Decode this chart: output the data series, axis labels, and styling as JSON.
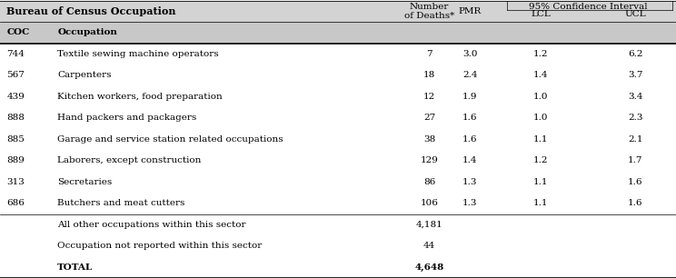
{
  "header1_left": "Bureau of Census Occupation",
  "header1_num": "Number\nof Deaths*",
  "header1_pmr": "PMR",
  "header1_ci": "95% Confidence Interval",
  "header1_lcl": "LCL",
  "header1_ucl": "UCL",
  "subheader_coc": "COC",
  "subheader_occ": "Occupation",
  "rows": [
    {
      "coc": "744",
      "occupation": "Textile sewing machine operators",
      "deaths": "7",
      "pmr": "3.0",
      "lcl": "1.2",
      "ucl": "6.2"
    },
    {
      "coc": "567",
      "occupation": "Carpenters",
      "deaths": "18",
      "pmr": "2.4",
      "lcl": "1.4",
      "ucl": "3.7"
    },
    {
      "coc": "439",
      "occupation": "Kitchen workers, food preparation",
      "deaths": "12",
      "pmr": "1.9",
      "lcl": "1.0",
      "ucl": "3.4"
    },
    {
      "coc": "888",
      "occupation": "Hand packers and packagers",
      "deaths": "27",
      "pmr": "1.6",
      "lcl": "1.0",
      "ucl": "2.3"
    },
    {
      "coc": "885",
      "occupation": "Garage and service station related occupations",
      "deaths": "38",
      "pmr": "1.6",
      "lcl": "1.1",
      "ucl": "2.1"
    },
    {
      "coc": "889",
      "occupation": "Laborers, except construction",
      "deaths": "129",
      "pmr": "1.4",
      "lcl": "1.2",
      "ucl": "1.7"
    },
    {
      "coc": "313",
      "occupation": "Secretaries",
      "deaths": "86",
      "pmr": "1.3",
      "lcl": "1.1",
      "ucl": "1.6"
    },
    {
      "coc": "686",
      "occupation": "Butchers and meat cutters",
      "deaths": "106",
      "pmr": "1.3",
      "lcl": "1.1",
      "ucl": "1.6"
    }
  ],
  "extra_rows": [
    {
      "coc": "",
      "occupation": "All other occupations within this sector",
      "deaths": "4,181",
      "pmr": "",
      "lcl": "",
      "ucl": ""
    },
    {
      "coc": "",
      "occupation": "Occupation not reported within this sector",
      "deaths": "44",
      "pmr": "",
      "lcl": "",
      "ucl": ""
    },
    {
      "coc": "",
      "occupation": "TOTAL",
      "deaths": "4,648",
      "pmr": "",
      "lcl": "",
      "ucl": ""
    }
  ],
  "col_x": {
    "coc": 0.01,
    "occupation": 0.085,
    "deaths": 0.635,
    "pmr": 0.695,
    "lcl": 0.8,
    "ucl": 0.94
  },
  "bg_header": "#d3d3d3",
  "bg_subheader": "#c8c8c8",
  "bg_white": "#ffffff",
  "font_size": 7.5,
  "figsize": [
    7.44,
    3.06
  ],
  "dpi": 100
}
